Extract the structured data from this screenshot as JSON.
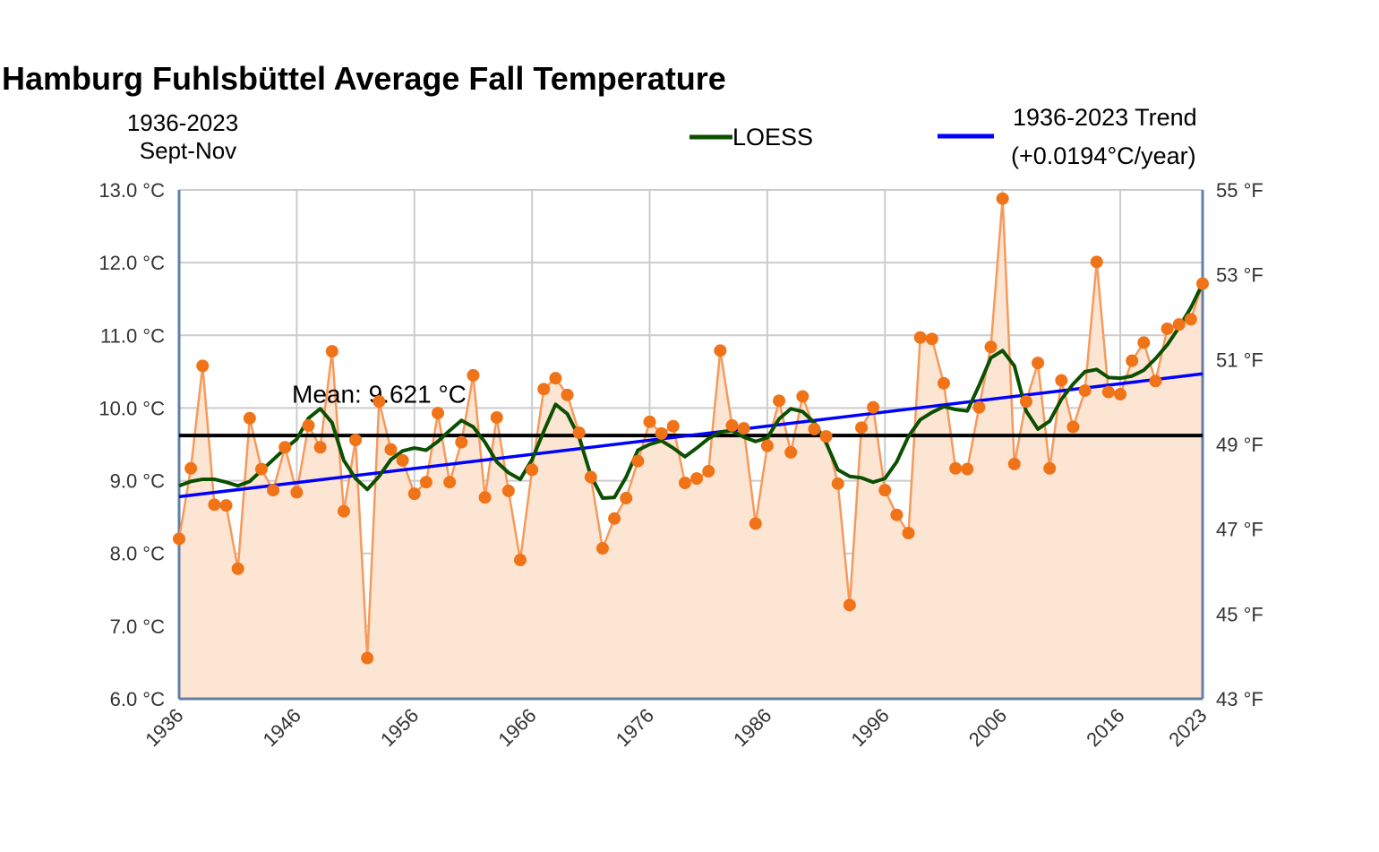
{
  "chart_data": {
    "type": "line",
    "title": "Hamburg Fuhlsbüttel Average Fall Temperature",
    "subtitle_lines": [
      "1936-2023",
      "Sept-Nov"
    ],
    "y_left_ticks": [
      "6.0 °C",
      "7.0 °C",
      "8.0 °C",
      "9.0 °C",
      "10.0 °C",
      "11.0 °C",
      "12.0 °C",
      "13.0 °C"
    ],
    "y_right_ticks": [
      "43 °F",
      "45 °F",
      "47 °F",
      "49 °F",
      "51 °F",
      "53 °F",
      "55 °F"
    ],
    "x_ticks": [
      "1936",
      "1946",
      "1956",
      "1966",
      "1976",
      "1986",
      "1996",
      "2006",
      "2016",
      "2023"
    ],
    "xlim": [
      1936,
      2023
    ],
    "ylim": [
      6,
      13
    ],
    "ylim_f": [
      43,
      55
    ],
    "grid": true,
    "legend": [
      {
        "label": "LOESS",
        "color": "#0b4f00"
      },
      {
        "label": "1936-2023 Trend",
        "label2": "(+0.0194°C/year)",
        "color": "#0000ff"
      }
    ],
    "mean": {
      "value": 9.621,
      "label": "Mean:  9.621 °C",
      "color": "#000000"
    },
    "colors": {
      "data": "#f07318",
      "data_line": "#f59a5c",
      "fill": "#fde5d3",
      "loess": "#0b4f00",
      "trend": "#0000ff",
      "axis": "#6080a8",
      "grid": "#cccccc"
    },
    "trend": {
      "start": [
        1936,
        8.78
      ],
      "end": [
        2023,
        10.47
      ]
    },
    "series": [
      {
        "name": "Data",
        "x": [
          1936,
          1937,
          1938,
          1939,
          1940,
          1941,
          1942,
          1943,
          1944,
          1945,
          1946,
          1947,
          1948,
          1949,
          1950,
          1951,
          1952,
          1953,
          1954,
          1955,
          1956,
          1957,
          1958,
          1959,
          1960,
          1961,
          1962,
          1963,
          1964,
          1965,
          1966,
          1967,
          1968,
          1969,
          1970,
          1971,
          1972,
          1973,
          1974,
          1975,
          1976,
          1977,
          1978,
          1979,
          1980,
          1981,
          1982,
          1983,
          1984,
          1985,
          1986,
          1987,
          1988,
          1989,
          1990,
          1991,
          1992,
          1993,
          1994,
          1995,
          1996,
          1997,
          1998,
          1999,
          2000,
          2001,
          2002,
          2003,
          2004,
          2005,
          2006,
          2007,
          2008,
          2009,
          2010,
          2011,
          2012,
          2013,
          2014,
          2015,
          2016,
          2017,
          2018,
          2019,
          2020,
          2021,
          2022,
          2023
        ],
        "values": [
          8.2,
          9.17,
          10.58,
          8.67,
          8.66,
          7.79,
          9.86,
          9.16,
          8.87,
          9.46,
          8.84,
          9.76,
          9.46,
          10.78,
          8.58,
          9.56,
          6.56,
          10.09,
          9.43,
          9.28,
          8.82,
          8.98,
          9.93,
          8.98,
          9.53,
          10.45,
          8.77,
          9.87,
          8.86,
          7.91,
          9.15,
          10.26,
          10.41,
          10.18,
          9.66,
          9.05,
          8.07,
          8.48,
          8.76,
          9.27,
          9.81,
          9.65,
          9.75,
          8.97,
          9.03,
          9.13,
          10.79,
          9.76,
          9.72,
          8.41,
          9.48,
          10.1,
          9.39,
          10.16,
          9.71,
          9.61,
          8.96,
          7.29,
          9.73,
          10.01,
          8.87,
          8.53,
          8.28,
          10.97,
          10.95,
          10.34,
          9.17,
          9.16,
          10.01,
          10.84,
          12.88,
          9.23,
          10.09,
          10.62,
          9.17,
          10.38,
          9.74,
          10.24,
          12.01,
          10.22,
          10.19,
          10.65,
          10.9,
          10.37,
          11.09,
          11.15,
          11.22,
          11.71
        ]
      },
      {
        "name": "LOESS",
        "x": [
          1936,
          1937,
          1938,
          1939,
          1940,
          1941,
          1942,
          1943,
          1944,
          1945,
          1946,
          1947,
          1948,
          1949,
          1950,
          1951,
          1952,
          1953,
          1954,
          1955,
          1956,
          1957,
          1958,
          1959,
          1960,
          1961,
          1962,
          1963,
          1964,
          1965,
          1966,
          1967,
          1968,
          1969,
          1970,
          1971,
          1972,
          1973,
          1974,
          1975,
          1976,
          1977,
          1978,
          1979,
          1980,
          1981,
          1982,
          1983,
          1984,
          1985,
          1986,
          1987,
          1988,
          1989,
          1990,
          1991,
          1992,
          1993,
          1994,
          1995,
          1996,
          1997,
          1998,
          1999,
          2000,
          2001,
          2002,
          2003,
          2004,
          2005,
          2006,
          2007,
          2008,
          2009,
          2010,
          2011,
          2012,
          2013,
          2014,
          2015,
          2016,
          2017,
          2018,
          2019,
          2020,
          2021,
          2022,
          2023
        ],
        "values": [
          8.93,
          8.99,
          9.02,
          9.02,
          8.98,
          8.93,
          8.99,
          9.14,
          9.29,
          9.44,
          9.57,
          9.86,
          9.99,
          9.8,
          9.28,
          9.03,
          8.88,
          9.06,
          9.29,
          9.41,
          9.45,
          9.42,
          9.54,
          9.69,
          9.83,
          9.74,
          9.53,
          9.26,
          9.11,
          9.02,
          9.29,
          9.68,
          10.05,
          9.92,
          9.6,
          9.07,
          8.76,
          8.77,
          9.05,
          9.42,
          9.5,
          9.55,
          9.45,
          9.33,
          9.45,
          9.58,
          9.67,
          9.69,
          9.6,
          9.54,
          9.59,
          9.85,
          9.99,
          9.95,
          9.8,
          9.52,
          9.15,
          9.06,
          9.04,
          8.98,
          9.03,
          9.26,
          9.61,
          9.84,
          9.94,
          10.02,
          9.98,
          9.96,
          10.31,
          10.69,
          10.79,
          10.58,
          9.96,
          9.71,
          9.82,
          10.12,
          10.33,
          10.5,
          10.53,
          10.42,
          10.41,
          10.44,
          10.52,
          10.68,
          10.87,
          11.11,
          11.38,
          11.71
        ]
      }
    ]
  }
}
